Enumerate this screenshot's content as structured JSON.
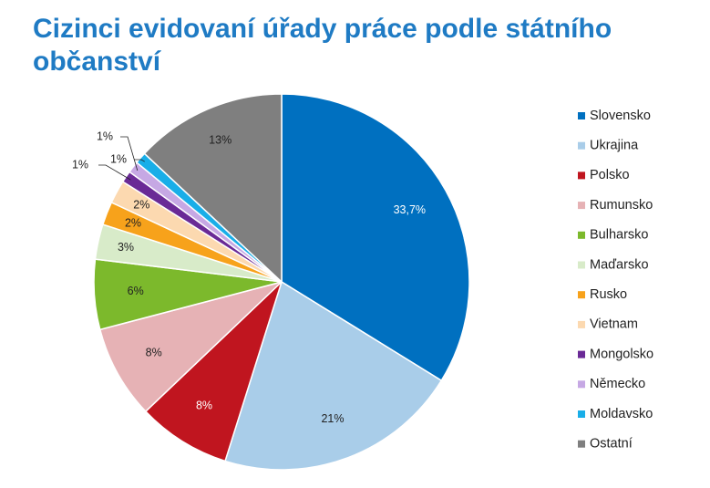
{
  "chart_data": {
    "type": "pie",
    "title": "Cizinci evidovaní úřady práce podle státního občanství",
    "legend_position": "right",
    "slices": [
      {
        "name": "Slovensko",
        "value": 33.7,
        "label": "33,7%",
        "color": "#0070c0"
      },
      {
        "name": "Ukrajina",
        "value": 21,
        "label": "21%",
        "color": "#a9cde9"
      },
      {
        "name": "Polsko",
        "value": 8,
        "label": "8%",
        "color": "#c0151f"
      },
      {
        "name": "Rumunsko",
        "value": 8,
        "label": "8%",
        "color": "#e6b2b5"
      },
      {
        "name": "Bulharsko",
        "value": 6,
        "label": "6%",
        "color": "#7cb92c"
      },
      {
        "name": "Maďarsko",
        "value": 3,
        "label": "3%",
        "color": "#d8ebc9"
      },
      {
        "name": "Rusko",
        "value": 2,
        "label": "2%",
        "color": "#f7a21b"
      },
      {
        "name": "Vietnam",
        "value": 2,
        "label": "2%",
        "color": "#fcd9b0"
      },
      {
        "name": "Mongolsko",
        "value": 1,
        "label": "1%",
        "color": "#6a2a96"
      },
      {
        "name": "Německo",
        "value": 1,
        "label": "1%",
        "color": "#c6a8e4"
      },
      {
        "name": "Moldavsko",
        "value": 1,
        "label": "1%",
        "color": "#19aee8"
      },
      {
        "name": "Ostatní",
        "value": 13,
        "label": "13%",
        "color": "#7f7f7f"
      }
    ]
  }
}
